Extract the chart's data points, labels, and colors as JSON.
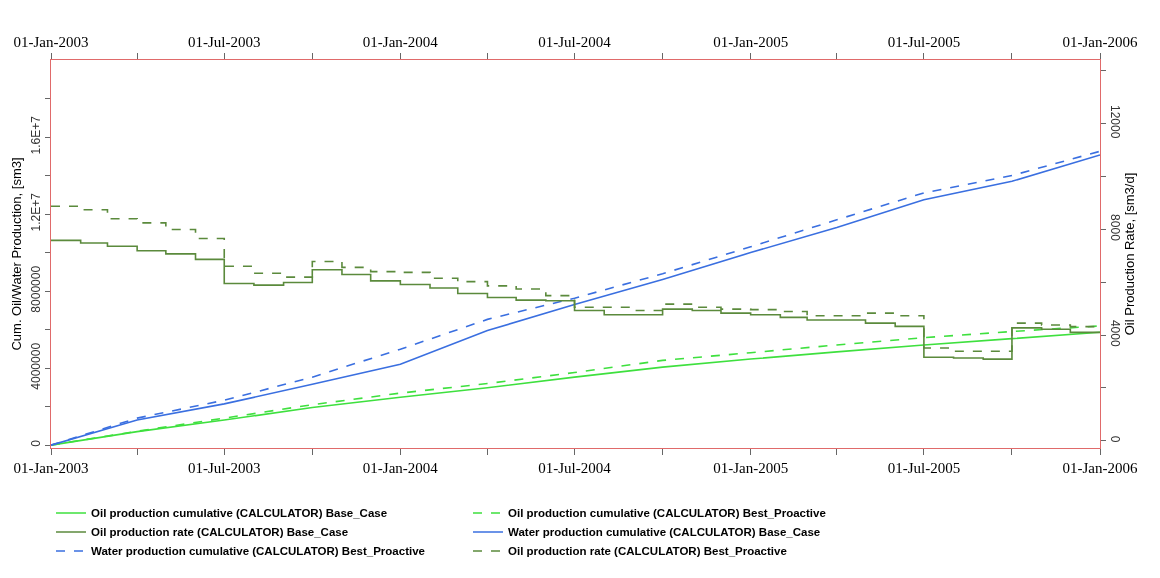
{
  "chart_data": {
    "type": "line",
    "ylabel": "Cum. Oil/Water Production, [sm3]",
    "y2label": "Oil Production Rate, [sm3/d]",
    "xlim": [
      "2003-01-01",
      "2006-01-01"
    ],
    "xticks": [
      {
        "value": "2003-01-01",
        "label": "01-Jan-2003"
      },
      {
        "value": "2003-04-01",
        "label": null
      },
      {
        "value": "2003-07-01",
        "label": "01-Jul-2003"
      },
      {
        "value": "2003-10-01",
        "label": null
      },
      {
        "value": "2004-01-01",
        "label": "01-Jan-2004"
      },
      {
        "value": "2004-04-01",
        "label": null
      },
      {
        "value": "2004-07-01",
        "label": "01-Jul-2004"
      },
      {
        "value": "2004-10-01",
        "label": null
      },
      {
        "value": "2005-01-01",
        "label": "01-Jan-2005"
      },
      {
        "value": "2005-04-01",
        "label": null
      },
      {
        "value": "2005-07-01",
        "label": "01-Jul-2005"
      },
      {
        "value": "2005-10-01",
        "label": null
      },
      {
        "value": "2006-01-01",
        "label": "01-Jan-2006"
      }
    ],
    "x2lim": [
      "2003-01-01",
      "2006-01-01"
    ],
    "x2ticks": [
      {
        "value": "2003-01-01",
        "label": "01-Jan-2003"
      },
      {
        "value": "2003-04-01",
        "label": null
      },
      {
        "value": "2003-07-01",
        "label": "01-Jul-2003"
      },
      {
        "value": "2003-10-01",
        "label": null
      },
      {
        "value": "2004-01-01",
        "label": "01-Jan-2004"
      },
      {
        "value": "2004-04-01",
        "label": null
      },
      {
        "value": "2004-07-01",
        "label": "01-Jul-2004"
      },
      {
        "value": "2004-10-01",
        "label": null
      },
      {
        "value": "2005-01-01",
        "label": "01-Jan-2005"
      },
      {
        "value": "2005-04-01",
        "label": null
      },
      {
        "value": "2005-07-01",
        "label": "01-Jul-2005"
      },
      {
        "value": "2005-10-01",
        "label": null
      },
      {
        "value": "2006-01-01",
        "label": "01-Jan-2006"
      }
    ],
    "ylim": [
      -150000,
      20000000
    ],
    "yticks": [
      0,
      {
        "value": 2000000,
        "label": null
      },
      4000000,
      {
        "value": 6000000,
        "label": null
      },
      8000000,
      {
        "value": 10000000,
        "label": null
      },
      {
        "value": 12000000,
        "label": "1.2E+7"
      },
      {
        "value": 14000000,
        "label": null
      },
      {
        "value": 16000000,
        "label": "1.6E+7"
      },
      {
        "value": 18000000,
        "label": null
      }
    ],
    "y2lim": [
      -270,
      14400
    ],
    "y2ticks": [
      0,
      {
        "value": 2000,
        "label": null
      },
      4000,
      {
        "value": 6000,
        "label": null
      },
      8000,
      {
        "value": 10000,
        "label": null
      },
      12000,
      {
        "value": 14000,
        "label": null
      }
    ],
    "grid": false,
    "legend": "bottom",
    "marker": "none",
    "x": [
      "2003-01-01",
      "2003-04-01",
      "2003-07-01",
      "2003-10-01",
      "2004-01-01",
      "2004-04-01",
      "2004-07-01",
      "2004-10-01",
      "2005-01-01",
      "2005-04-01",
      "2005-07-01",
      "2005-10-01",
      "2006-01-01"
    ],
    "series": [
      {
        "name": "Oil production cumulative (CALCULATOR) Base_Case",
        "color": "#3ee03e",
        "line_style": "solid",
        "values": [
          0,
          700000,
          1300000,
          1950000,
          2490000,
          2980000,
          3530000,
          4050000,
          4470000,
          4840000,
          5200000,
          5530000,
          5860000
        ]
      },
      {
        "name": "Oil production cumulative (CALCULATOR) Best_Proactive",
        "color": "#3ee03e",
        "line_style": "dashed",
        "values": [
          0,
          720000,
          1400000,
          2100000,
          2700000,
          3200000,
          3770000,
          4400000,
          4800000,
          5200000,
          5580000,
          5900000,
          6190000
        ]
      },
      {
        "name": "Oil production rate (CALCULATOR) Base_Case",
        "type": "step",
        "axis": "y2",
        "color": "#5b8a3c",
        "line_style": "solid",
        "x": [
          "2003-01-01",
          "2003-02-01",
          "2003-03-01",
          "2003-04-01",
          "2003-05-01",
          "2003-06-01",
          "2003-07-01",
          "2003-08-01",
          "2003-09-01",
          "2003-10-01",
          "2003-11-01",
          "2003-12-01",
          "2004-01-01",
          "2004-02-01",
          "2004-03-01",
          "2004-04-01",
          "2004-05-01",
          "2004-06-01",
          "2004-07-01",
          "2004-08-01",
          "2004-09-01",
          "2004-10-01",
          "2004-11-01",
          "2004-12-01",
          "2005-01-01",
          "2005-02-01",
          "2005-03-01",
          "2005-04-01",
          "2005-05-01",
          "2005-06-01",
          "2005-07-01",
          "2005-08-01",
          "2005-09-01",
          "2005-10-01",
          "2005-11-01",
          "2005-12-01",
          "2006-01-01"
        ],
        "values": [
          7580,
          7480,
          7360,
          7190,
          7070,
          6860,
          5950,
          5890,
          5990,
          6470,
          6290,
          6050,
          5910,
          5780,
          5570,
          5420,
          5320,
          5300,
          4930,
          4770,
          4770,
          4980,
          4930,
          4830,
          4770,
          4670,
          4570,
          4570,
          4450,
          4330,
          3160,
          3130,
          3090,
          4270,
          4220,
          4100,
          4100
        ]
      },
      {
        "name": "Water production cumulative (CALCULATOR) Base_Case",
        "color": "#3a6fe0",
        "line_style": "solid",
        "values": [
          0,
          1300000,
          2140000,
          3160000,
          4200000,
          5950000,
          7300000,
          8600000,
          10000000,
          11300000,
          12740000,
          13700000,
          15070000
        ]
      },
      {
        "name": "Water production cumulative (CALCULATOR) Best_Proactive",
        "color": "#3a6fe0",
        "line_style": "dashed",
        "values": [
          0,
          1400000,
          2330000,
          3530000,
          4980000,
          6530000,
          7630000,
          8900000,
          10300000,
          11700000,
          13100000,
          14000000,
          15260000
        ]
      },
      {
        "name": "Oil production rate (CALCULATOR) Best_Proactive",
        "type": "step",
        "axis": "y2",
        "color": "#5b8a3c",
        "line_style": "dashed",
        "x": [
          "2003-01-01",
          "2003-02-01",
          "2003-03-01",
          "2003-04-01",
          "2003-05-01",
          "2003-06-01",
          "2003-07-01",
          "2003-08-01",
          "2003-09-01",
          "2003-10-01",
          "2003-11-01",
          "2003-12-01",
          "2004-01-01",
          "2004-02-01",
          "2004-03-01",
          "2004-04-01",
          "2004-05-01",
          "2004-06-01",
          "2004-07-01",
          "2004-08-01",
          "2004-09-01",
          "2004-10-01",
          "2004-11-01",
          "2004-12-01",
          "2005-01-01",
          "2005-02-01",
          "2005-03-01",
          "2005-04-01",
          "2005-05-01",
          "2005-06-01",
          "2005-07-01",
          "2005-08-01",
          "2005-09-01",
          "2005-10-01",
          "2005-11-01",
          "2005-12-01",
          "2006-01-01"
        ],
        "values": [
          8870,
          8740,
          8400,
          8240,
          7990,
          7650,
          6600,
          6340,
          6190,
          6780,
          6560,
          6400,
          6370,
          6150,
          6020,
          5860,
          5740,
          5490,
          5050,
          5050,
          4930,
          5170,
          5050,
          4980,
          4960,
          4890,
          4730,
          4730,
          4830,
          4730,
          3510,
          3390,
          3390,
          4450,
          4380,
          4320,
          4320
        ]
      }
    ]
  }
}
